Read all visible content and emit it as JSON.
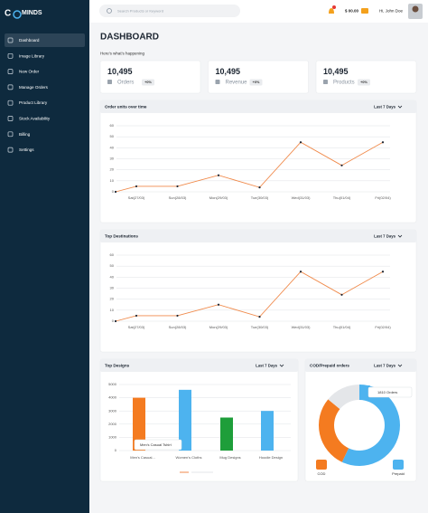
{
  "brand": {
    "left": "C",
    "right": "MINDS"
  },
  "sidebar": {
    "menu": [
      "Dashboard",
      "Image Library",
      "New Order",
      "Manage Orders",
      "Product Library",
      "Stock Availability",
      "Billing",
      "Settings"
    ],
    "active": 0
  },
  "topbar": {
    "search_placeholder": "Search Products or Keyword",
    "balance": "$ 00.00",
    "greeting": "Hi, John Doe"
  },
  "header": {
    "title": "DASHBOARD",
    "subtitle": "Here's what's happening"
  },
  "stats": [
    {
      "value": "10,495",
      "label": "Orders",
      "change": "+0%"
    },
    {
      "value": "10,495",
      "label": "Revenue",
      "change": "+0%"
    },
    {
      "value": "10,495",
      "label": "Products",
      "change": "+0%"
    }
  ],
  "charts": [
    {
      "type": "line",
      "title": "Order units over time",
      "filter": "Last 7 Days",
      "categories": [
        null,
        "Sat(27/03)",
        "Sun(28/03)",
        "Mon(29/03)",
        "Tue(30/03)",
        "Wed(31/03)",
        "Thu(01/04)",
        "Fri(02/04)"
      ],
      "values": [
        0,
        5,
        5,
        15,
        4,
        45,
        24,
        45
      ],
      "color": "#f08a4b",
      "ylim": [
        0,
        60
      ],
      "yticks": [
        0,
        10,
        20,
        30,
        40,
        50,
        60
      ],
      "grid": true
    },
    {
      "type": "line",
      "title": "Top Destinations",
      "filter": "Last 7 Days",
      "categories": [
        null,
        "Sat(27/03)",
        "Sun(28/03)",
        "Mon(29/03)",
        "Tue(30/03)",
        "Wed(31/03)",
        "Thu(01/04)",
        "Fri(02/04)"
      ],
      "values": [
        0,
        5,
        5,
        15,
        4,
        45,
        24,
        45
      ],
      "color": "#f08a4b",
      "ylim": [
        0,
        60
      ],
      "yticks": [
        0,
        10,
        20,
        30,
        40,
        50,
        60
      ],
      "grid": true
    },
    {
      "type": "bar",
      "title": "Top Designs",
      "filter": "Last 7 Days",
      "categories": [
        "Men's Casual...",
        "Women's Cloths",
        "Mug Designs",
        "Hoodie Design"
      ],
      "values": [
        4000,
        4600,
        2500,
        3000
      ],
      "colors": [
        "#f47b20",
        "#4db3ef",
        "#1e9e3a",
        "#4db3ef"
      ],
      "ylim": [
        0,
        5000
      ],
      "yticks": [
        0,
        1000,
        2000,
        3000,
        4000,
        5000
      ],
      "grid": true,
      "tooltip": "Men's Casual Tshirt"
    },
    {
      "type": "donut",
      "title": "COD/Prepaid orders",
      "filter": "Last 7 Days",
      "slices": [
        {
          "name": "Prepaid",
          "value": 57,
          "color": "#4db3ef"
        },
        {
          "name": "COD",
          "value": 29,
          "color": "#f47b20"
        },
        {
          "value": 14,
          "color": "#e4e6e9"
        }
      ],
      "legend": [
        1,
        0
      ],
      "tooltip": "1810 Orders"
    }
  ]
}
